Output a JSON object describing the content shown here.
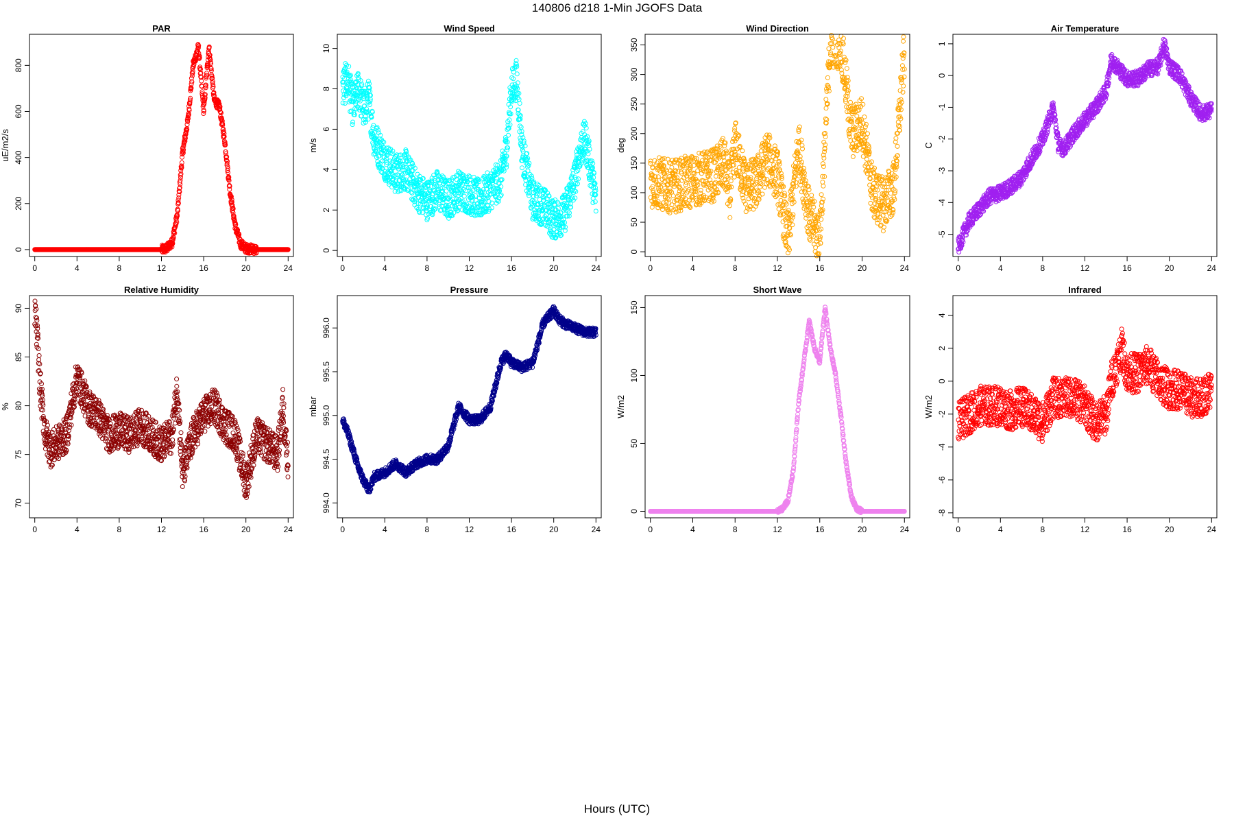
{
  "title": "140806   d218   1-Min  JGOFS Data",
  "xlabel": "Hours (UTC)",
  "chart_data": [
    {
      "type": "scatter",
      "title": "PAR",
      "ylabel": "uE/m2/s",
      "color": "#ff0000",
      "xlim": [
        -0.5,
        24.5
      ],
      "ylim": [
        -30,
        935
      ],
      "xticks": [
        0,
        4,
        8,
        12,
        16,
        20,
        24
      ],
      "yticks": [
        0,
        200,
        400,
        600,
        800
      ],
      "series": [
        {
          "x": [
            0,
            4,
            8,
            12,
            12.5,
            13,
            13.5,
            14,
            14.5,
            15,
            15.5,
            16,
            16.5,
            17,
            17.5,
            18,
            18.5,
            19,
            19.5,
            20,
            21,
            24
          ],
          "y": [
            0,
            0,
            0,
            0,
            5,
            30,
            150,
            420,
            560,
            800,
            880,
            600,
            880,
            650,
            620,
            470,
            250,
            100,
            25,
            5,
            0,
            0
          ]
        }
      ]
    },
    {
      "type": "scatter",
      "title": "Wind Speed",
      "ylabel": "m/s",
      "color": "#00ffff",
      "xlim": [
        -0.5,
        24.5
      ],
      "ylim": [
        -0.3,
        10.7
      ],
      "xticks": [
        0,
        4,
        8,
        12,
        16,
        20,
        24
      ],
      "yticks": [
        0,
        2,
        4,
        6,
        8,
        10
      ],
      "series": [
        {
          "x": [
            0,
            0.5,
            1,
            1.5,
            2,
            2.5,
            3,
            4,
            5,
            6,
            7,
            8,
            9,
            10,
            11,
            12,
            13,
            14,
            15,
            15.5,
            16,
            16.5,
            17,
            18,
            19,
            20,
            21,
            22,
            22.5,
            23,
            24
          ],
          "y": [
            8,
            8.5,
            7,
            8,
            7,
            7.5,
            5.5,
            4.5,
            3.8,
            4,
            3,
            2.5,
            3,
            2.5,
            3,
            2.8,
            2.5,
            3,
            3.5,
            5,
            8,
            8.5,
            5,
            2.5,
            2.2,
            1.5,
            1.8,
            3.5,
            5,
            5.5,
            2.5
          ]
        }
      ]
    },
    {
      "type": "scatter",
      "title": "Wind Direction",
      "ylabel": "deg",
      "color": "#ffa500",
      "xlim": [
        -0.5,
        24.5
      ],
      "ylim": [
        -8,
        368
      ],
      "xticks": [
        0,
        4,
        8,
        12,
        16,
        20,
        24
      ],
      "yticks": [
        0,
        50,
        100,
        150,
        200,
        250,
        300,
        350
      ],
      "series": [
        {
          "x": [
            0,
            1,
            2,
            3,
            4,
            5,
            6,
            7,
            7.5,
            8,
            9,
            10,
            11,
            12,
            13,
            14,
            15,
            16,
            17,
            18,
            19,
            20,
            21,
            22,
            23,
            24
          ],
          "y": [
            120,
            115,
            110,
            115,
            120,
            125,
            130,
            150,
            100,
            180,
            110,
            115,
            160,
            130,
            20,
            180,
            60,
            20,
            355,
            355,
            200,
            220,
            100,
            80,
            110,
            340
          ]
        }
      ]
    },
    {
      "type": "scatter",
      "title": "Air Temperature",
      "ylabel": "C",
      "color": "#a020f0",
      "xlim": [
        -0.5,
        24.5
      ],
      "ylim": [
        -5.7,
        1.3
      ],
      "xticks": [
        0,
        4,
        8,
        12,
        16,
        20,
        24
      ],
      "yticks": [
        -5,
        -4,
        -3,
        -2,
        -1,
        0,
        1
      ],
      "series": [
        {
          "x": [
            0,
            0.5,
            1,
            2,
            3,
            4,
            5,
            6,
            7,
            8,
            9,
            9.5,
            10,
            11,
            12,
            13,
            14,
            14.5,
            15,
            16,
            17,
            18,
            19,
            19.5,
            20,
            21,
            22,
            23,
            24
          ],
          "y": [
            -5.4,
            -5,
            -4.6,
            -4.2,
            -3.8,
            -3.7,
            -3.5,
            -3.2,
            -2.6,
            -2,
            -1,
            -2.2,
            -2.3,
            -1.8,
            -1.4,
            -1,
            -0.5,
            0.5,
            0.3,
            -0.1,
            -0.1,
            0.2,
            0.3,
            1,
            0.3,
            0,
            -0.7,
            -1.2,
            -1.1
          ]
        }
      ]
    },
    {
      "type": "scatter",
      "title": "Relative Humidity",
      "ylabel": "%",
      "color": "#8b0000",
      "xlim": [
        -0.5,
        24.5
      ],
      "ylim": [
        68.5,
        91.3
      ],
      "xticks": [
        0,
        4,
        8,
        12,
        16,
        20,
        24
      ],
      "yticks": [
        70,
        75,
        80,
        85,
        90
      ],
      "series": [
        {
          "x": [
            0,
            0.3,
            0.5,
            1,
            1.5,
            2,
            3,
            4,
            5,
            6,
            7,
            8,
            9,
            10,
            11,
            12,
            13,
            13.5,
            14,
            15,
            16,
            17,
            18,
            19,
            20,
            21,
            22,
            23,
            23.5,
            24
          ],
          "y": [
            90,
            86,
            82,
            77,
            75.5,
            76,
            77,
            83,
            80,
            79,
            77,
            77.5,
            77,
            78,
            77,
            76,
            77,
            82,
            73,
            77,
            79,
            80,
            78,
            77,
            72,
            77,
            76,
            75,
            80,
            74
          ]
        }
      ]
    },
    {
      "type": "scatter",
      "title": "Pressure",
      "ylabel": "mbar",
      "color": "#00008b",
      "xlim": [
        -0.5,
        24.5
      ],
      "ylim": [
        993.83,
        996.37
      ],
      "xticks": [
        0,
        4,
        8,
        12,
        16,
        20,
        24
      ],
      "yticks": [
        994.0,
        994.5,
        995.0,
        995.5,
        996.0
      ],
      "series": [
        {
          "x": [
            0,
            0.5,
            1,
            1.5,
            2,
            2.5,
            3,
            4,
            5,
            6,
            7,
            8,
            9,
            10,
            11,
            12,
            13,
            14,
            15,
            15.5,
            16,
            17,
            18,
            19,
            20,
            20.5,
            21,
            22,
            23,
            24
          ],
          "y": [
            994.95,
            994.8,
            994.6,
            994.4,
            994.25,
            994.15,
            994.3,
            994.35,
            994.45,
            994.35,
            994.45,
            994.5,
            994.5,
            994.65,
            995.1,
            994.95,
            994.95,
            995.1,
            995.6,
            995.7,
            995.6,
            995.55,
            995.6,
            996.05,
            996.2,
            996.1,
            996.05,
            996.0,
            995.95,
            995.95
          ]
        }
      ]
    },
    {
      "type": "scatter",
      "title": "Short Wave",
      "ylabel": "W/m2",
      "color": "#ee82ee",
      "xlim": [
        -0.5,
        24.5
      ],
      "ylim": [
        -4.8,
        158.8
      ],
      "xticks": [
        0,
        4,
        8,
        12,
        16,
        20,
        24
      ],
      "yticks": [
        0,
        50,
        100,
        150
      ],
      "series": [
        {
          "x": [
            0,
            4,
            8,
            12,
            12.5,
            13,
            13.5,
            14,
            14.5,
            15,
            15.5,
            16,
            16.5,
            17,
            17.5,
            18,
            18.5,
            19,
            19.5,
            20,
            24
          ],
          "y": [
            0,
            0,
            0,
            0,
            2,
            8,
            30,
            80,
            110,
            140,
            120,
            110,
            150,
            120,
            100,
            70,
            35,
            10,
            2,
            0,
            0
          ]
        }
      ]
    },
    {
      "type": "scatter",
      "title": "Infrared",
      "ylabel": "W/m2",
      "color": "#ff0000",
      "xlim": [
        -0.5,
        24.5
      ],
      "ylim": [
        -8.3,
        5.2
      ],
      "xticks": [
        0,
        4,
        8,
        12,
        16,
        20,
        24
      ],
      "yticks": [
        -8,
        -6,
        -4,
        -2,
        0,
        2,
        4
      ],
      "series": [
        {
          "x": [
            0,
            1,
            2,
            3,
            4,
            5,
            6,
            7,
            8,
            9,
            10,
            11,
            12,
            13,
            14,
            14.5,
            15,
            15.5,
            16,
            17,
            18,
            19,
            20,
            21,
            22,
            23,
            24
          ],
          "y": [
            -2.5,
            -2,
            -1.5,
            -1.5,
            -1.5,
            -1.8,
            -1.5,
            -2,
            -2.5,
            -1,
            -1,
            -1,
            -1.5,
            -2.5,
            -2,
            0,
            1,
            2,
            0.5,
            0.5,
            1,
            0,
            -0.5,
            -0.5,
            -1,
            -1,
            -0.5
          ]
        }
      ]
    }
  ]
}
